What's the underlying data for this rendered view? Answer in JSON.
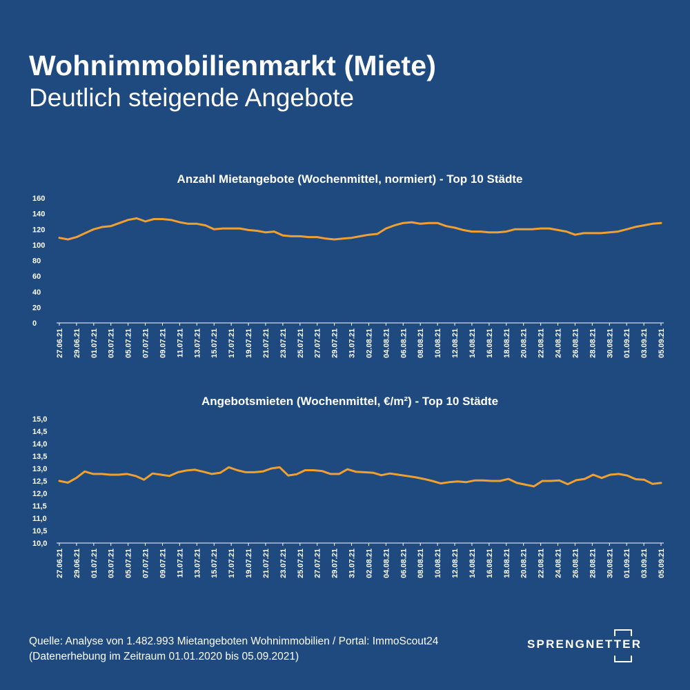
{
  "header": {
    "title": "Wohnimmobilienmarkt (Miete)",
    "subtitle": "Deutlich steigende Angebote"
  },
  "colors": {
    "background": "#1e4a80",
    "line": "#f0a030",
    "text": "#ffffff"
  },
  "footer": {
    "source_line1": "Quelle: Analyse von 1.482.993 Mietangeboten Wohnimmobilien / Portal: ImmoScout24",
    "source_line2": "(Datenerhebung im Zeitraum 01.01.2020 bis  05.09.2021)",
    "logo_text": "SPRENGNETTER"
  },
  "chart_data": [
    {
      "type": "line",
      "title": "Anzahl Mietangebote (Wochenmittel, normiert) - Top 10 Städte",
      "ylim": [
        0,
        160
      ],
      "yticks": [
        "0",
        "20",
        "40",
        "60",
        "80",
        "100",
        "120",
        "140",
        "160"
      ],
      "xticks": [
        "27.06.21",
        "29.06.21",
        "01.07.21",
        "03.07.21",
        "05.07.21",
        "07.07.21",
        "09.07.21",
        "11.07.21",
        "13.07.21",
        "15.07.21",
        "17.07.21",
        "19.07.21",
        "21.07.21",
        "23.07.21",
        "25.07.21",
        "27.07.21",
        "29.07.21",
        "31.07.21",
        "02.08.21",
        "04.08.21",
        "06.08.21",
        "08.08.21",
        "10.08.21",
        "12.08.21",
        "14.08.21",
        "16.08.21",
        "18.08.21",
        "20.08.21",
        "22.08.21",
        "24.08.21",
        "26.08.21",
        "28.08.21",
        "30.08.21",
        "01.09.21",
        "03.09.21",
        "05.09.21"
      ],
      "grid": false,
      "series": [
        {
          "values": [
            109,
            107,
            110,
            115,
            120,
            123,
            124,
            128,
            132,
            134,
            130,
            133,
            133,
            132,
            129,
            127,
            127,
            125,
            120,
            121,
            121,
            121,
            119,
            118,
            116,
            117,
            112,
            111,
            111,
            110,
            110,
            108,
            107,
            108,
            109,
            111,
            113,
            114,
            121,
            125,
            128,
            129,
            127,
            128,
            128,
            124,
            122,
            119,
            117,
            117,
            116,
            116,
            117,
            120,
            120,
            120,
            121,
            121,
            119,
            117,
            113,
            115,
            115,
            115,
            116,
            117,
            120,
            123,
            125,
            127,
            128
          ]
        }
      ]
    },
    {
      "type": "line",
      "title": "Angebotsmieten (Wochenmittel, €/m²) - Top 10 Städte",
      "ylim": [
        10.0,
        15.0
      ],
      "yticks": [
        "10,0",
        "10,5",
        "11,0",
        "11,5",
        "12,0",
        "12,5",
        "13,0",
        "13,5",
        "14,0",
        "14,5",
        "15,0"
      ],
      "xticks": [
        "27.06.21",
        "29.06.21",
        "01.07.21",
        "03.07.21",
        "05.07.21",
        "07.07.21",
        "09.07.21",
        "11.07.21",
        "13.07.21",
        "15.07.21",
        "17.07.21",
        "19.07.21",
        "21.07.21",
        "23.07.21",
        "25.07.21",
        "27.07.21",
        "29.07.21",
        "31.07.21",
        "02.08.21",
        "04.08.21",
        "06.08.21",
        "08.08.21",
        "10.08.21",
        "12.08.21",
        "14.08.21",
        "16.08.21",
        "18.08.21",
        "20.08.21",
        "22.08.21",
        "24.08.21",
        "26.08.21",
        "28.08.21",
        "30.08.21",
        "01.09.21",
        "03.09.21",
        "05.09.21"
      ],
      "grid": false,
      "series": [
        {
          "values": [
            12.5,
            12.43,
            12.62,
            12.88,
            12.78,
            12.78,
            12.75,
            12.75,
            12.78,
            12.7,
            12.55,
            12.8,
            12.75,
            12.7,
            12.85,
            12.92,
            12.95,
            12.87,
            12.78,
            12.83,
            13.05,
            12.93,
            12.85,
            12.85,
            12.88,
            13.0,
            13.05,
            12.72,
            12.77,
            12.93,
            12.93,
            12.9,
            12.78,
            12.78,
            12.97,
            12.87,
            12.85,
            12.83,
            12.73,
            12.8,
            12.75,
            12.7,
            12.65,
            12.58,
            12.5,
            12.4,
            12.45,
            12.48,
            12.45,
            12.52,
            12.52,
            12.5,
            12.5,
            12.58,
            12.42,
            12.35,
            12.28,
            12.5,
            12.5,
            12.52,
            12.37,
            12.53,
            12.58,
            12.75,
            12.62,
            12.75,
            12.78,
            12.72,
            12.57,
            12.55,
            12.38,
            12.42
          ]
        }
      ]
    }
  ]
}
